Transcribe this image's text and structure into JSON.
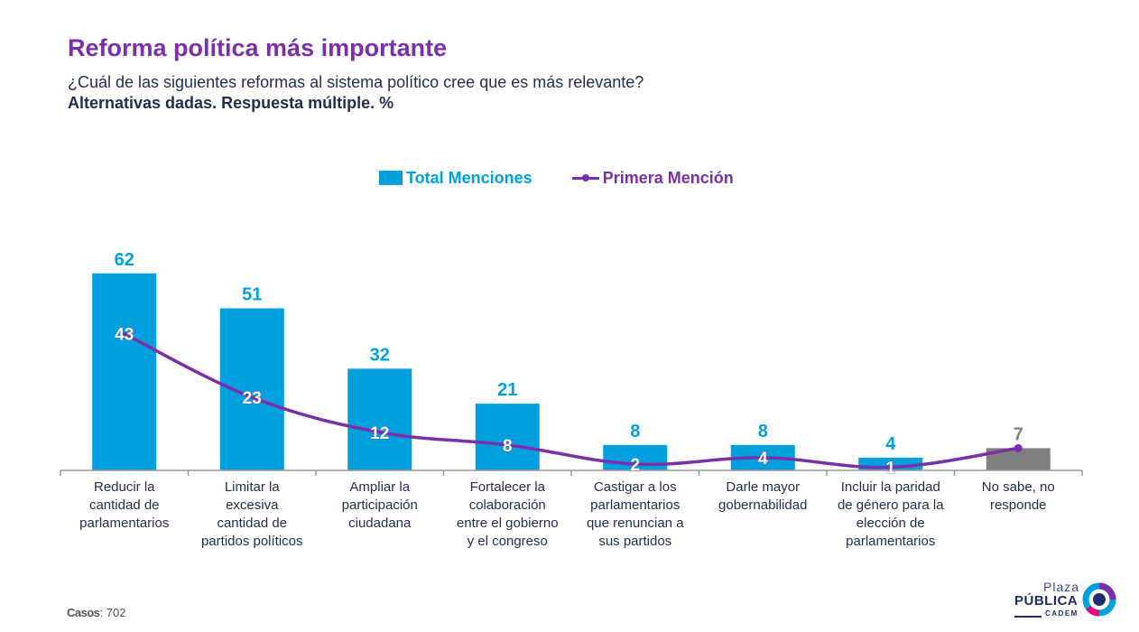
{
  "header": {
    "title": "Reforma política más importante",
    "subtitle": "¿Cuál de las siguientes reformas al sistema político cree que es más relevante?",
    "subtitle2": "Alternativas dadas. Respuesta múltiple. %"
  },
  "legend": {
    "bars_label": "Total Menciones",
    "line_label": "Primera Mención"
  },
  "colors": {
    "title": "#7B2FA8",
    "bar": "#00A0DF",
    "bar_nsnr": "#808080",
    "line": "#7B2FA8",
    "value_label": "#00A0DF",
    "nsnr_label": "#808080",
    "axis_text": "#1f2d4e"
  },
  "chart_data": {
    "type": "bar",
    "categories": [
      "Reducir la cantidad de parlamentarios",
      "Limitar la excesiva cantidad de partidos políticos",
      "Ampliar la participación ciudadana",
      "Fortalecer la colaboración entre el gobierno y el congreso",
      "Castigar a los parlamentarios que renuncian a sus partidos",
      "Darle mayor gobernabilidad",
      "Incluir la paridad de género para la elección de parlamentarios",
      "No sabe, no responde"
    ],
    "category_lines": [
      [
        "Reducir la",
        "cantidad de",
        "parlamentarios"
      ],
      [
        "Limitar la",
        "excesiva",
        "cantidad de",
        "partidos políticos"
      ],
      [
        "Ampliar la",
        "participación",
        "ciudadana"
      ],
      [
        "Fortalecer la",
        "colaboración",
        "entre el gobierno",
        "y el congreso"
      ],
      [
        "Castigar a los",
        "parlamentarios",
        "que renuncian a",
        "sus partidos"
      ],
      [
        "Darle mayor",
        "gobernabilidad"
      ],
      [
        "Incluir la paridad",
        "de género para la",
        "elección de",
        "parlamentarios"
      ],
      [
        "No sabe, no",
        "responde"
      ]
    ],
    "series": [
      {
        "name": "Total Menciones",
        "type": "bar",
        "values": [
          62,
          51,
          32,
          21,
          8,
          8,
          4,
          7
        ]
      },
      {
        "name": "Primera Mención",
        "type": "line",
        "values": [
          43,
          23,
          12,
          8,
          2,
          4,
          1,
          7
        ]
      }
    ],
    "ylim": [
      0,
      62
    ],
    "grid": false,
    "legend_position": "top-center"
  },
  "footnote": {
    "label": "Casos",
    "value": ": 702"
  },
  "logo": {
    "line1": "Plaza",
    "line2": "PÚBLICA",
    "line3": "CADEM"
  }
}
